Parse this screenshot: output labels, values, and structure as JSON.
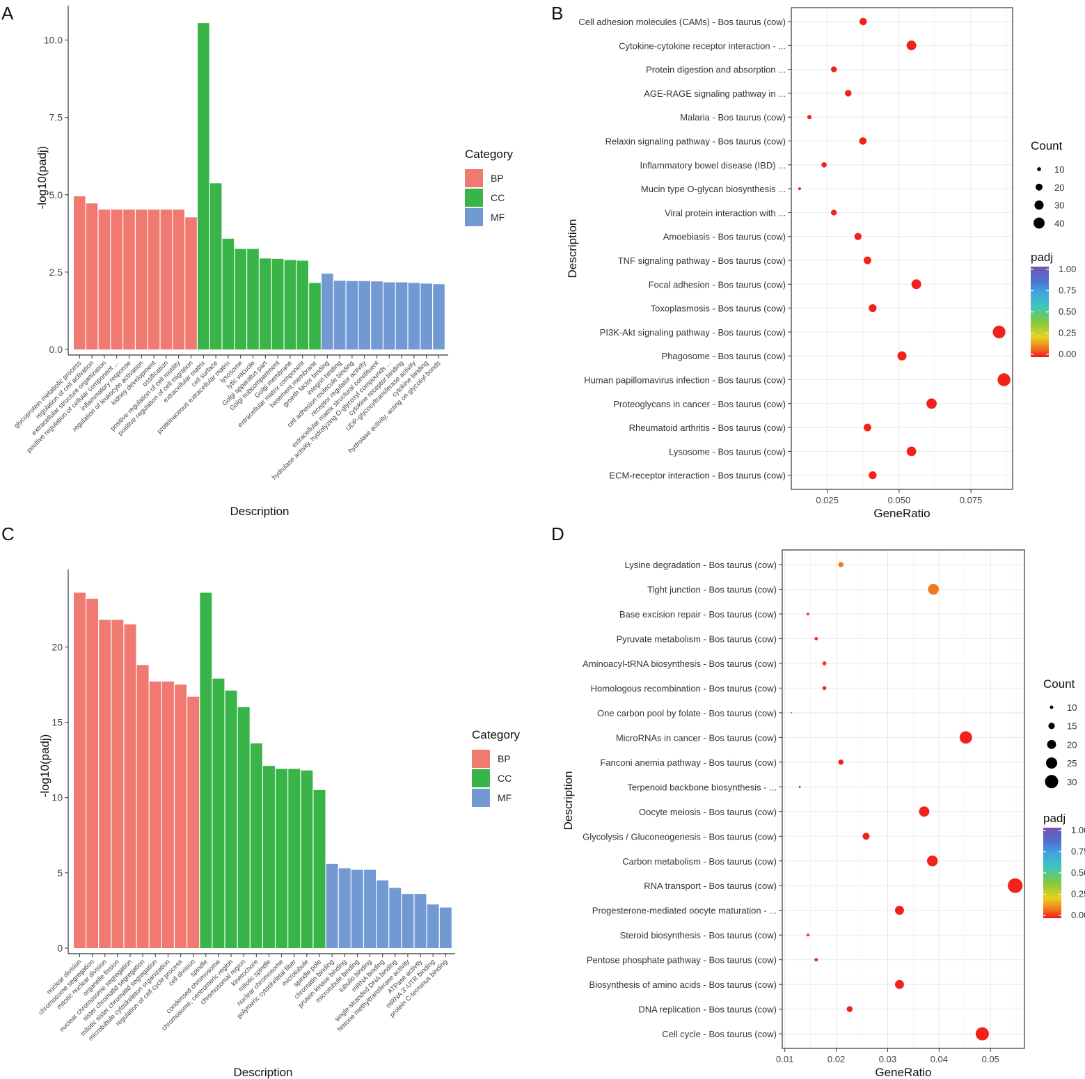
{
  "panel_labels": [
    "A",
    "B",
    "C",
    "D"
  ],
  "colors": {
    "BP": "#F07A72",
    "CC": "#38B449",
    "MF": "#7299D2",
    "grid": "#E8E8E8",
    "axis": "#333333"
  },
  "chart_data": [
    {
      "panel": "A",
      "type": "bar",
      "title": "",
      "xlabel": "Description",
      "ylabel": "-log10(padj)",
      "ylim": [
        0,
        10.8
      ],
      "yticks": [
        0.0,
        2.5,
        5.0,
        7.5,
        10.0
      ],
      "ytick_labels": [
        "0.0",
        "2.5",
        "5.0",
        "7.5",
        "10.0"
      ],
      "legend_title": "Category",
      "legend": [
        "BP",
        "CC",
        "MF"
      ],
      "categories": [
        "glycoprotein metabolic process",
        "regulation of cell activation",
        "extracellular structure organization",
        "positive regulation of cellular component ...",
        "inflammatory response",
        "regulation of leukocyte activation",
        "kidney development",
        "ossification",
        "positive regulation of cell motility",
        "positive regulation of cell migration",
        "extracellular matrix",
        "cell surface",
        "proteinaceous extracellular matrix",
        "lysosome",
        "lytic vacuole",
        "Golgi apparatus part",
        "Golgi subcompartment",
        "Golgi membrane",
        "extracellular matrix component",
        "basement membrane",
        "growth factor binding",
        "integrin binding",
        "cell adhesion molecule binding",
        "receptor regulator activity",
        "extracellular matrix structural constituent",
        "hydrolase activity, hydrolyzing O-glycosyl compounds ...",
        "cytokine receptor binding",
        "UDP-glycosyltransferase activity",
        "cytokine binding",
        "hydrolase activity, acting on glycosyl bonds"
      ],
      "groups": [
        "BP",
        "BP",
        "BP",
        "BP",
        "BP",
        "BP",
        "BP",
        "BP",
        "BP",
        "BP",
        "CC",
        "CC",
        "CC",
        "CC",
        "CC",
        "CC",
        "CC",
        "CC",
        "CC",
        "CC",
        "MF",
        "MF",
        "MF",
        "MF",
        "MF",
        "MF",
        "MF",
        "MF",
        "MF",
        "MF"
      ],
      "values": [
        4.95,
        4.72,
        4.52,
        4.52,
        4.52,
        4.52,
        4.52,
        4.52,
        4.52,
        4.27,
        10.55,
        5.37,
        3.58,
        3.25,
        3.25,
        2.94,
        2.93,
        2.89,
        2.87,
        2.15,
        2.45,
        2.22,
        2.21,
        2.21,
        2.2,
        2.17,
        2.17,
        2.15,
        2.13,
        2.11
      ]
    },
    {
      "panel": "B",
      "type": "scatter",
      "title": "",
      "xlabel": "GeneRatio",
      "ylabel": "Description",
      "xlim": [
        0.0125,
        0.0895
      ],
      "xticks": [
        0.025,
        0.05,
        0.075
      ],
      "xtick_labels": [
        "0.025",
        "0.050",
        "0.075"
      ],
      "size_legend_title": "Count",
      "size_legend_values": [
        10,
        20,
        30,
        40
      ],
      "color_legend_title": "padj",
      "color_legend_ticks": [
        "1.00",
        "0.75",
        "0.50",
        "0.25",
        "0.00"
      ],
      "points": [
        {
          "label": "Cell adhesion molecules (CAMs) - Bos taurus (cow)",
          "x": 0.0375,
          "count": 22,
          "padj": 0.01
        },
        {
          "label": "Cytokine-cytokine receptor interaction - ...",
          "x": 0.0543,
          "count": 33,
          "padj": 0.01
        },
        {
          "label": "Protein digestion and absorption ...",
          "x": 0.0273,
          "count": 16,
          "padj": 0.01
        },
        {
          "label": "AGE-RAGE signaling pathway in ...",
          "x": 0.0323,
          "count": 19,
          "padj": 0.01
        },
        {
          "label": "Malaria - Bos taurus (cow)",
          "x": 0.0188,
          "count": 11,
          "padj": 0.01
        },
        {
          "label": "Relaxin signaling pathway - Bos taurus (cow)",
          "x": 0.0374,
          "count": 22,
          "padj": 0.01
        },
        {
          "label": "Inflammatory bowel disease (IBD) ...",
          "x": 0.0239,
          "count": 14,
          "padj": 0.01
        },
        {
          "label": "Mucin type O-glycan biosynthesis ...",
          "x": 0.0154,
          "count": 7,
          "padj": 0.01
        },
        {
          "label": "Viral protein interaction with ...",
          "x": 0.0273,
          "count": 16,
          "padj": 0.01
        },
        {
          "label": "Amoebiasis - Bos taurus (cow)",
          "x": 0.0357,
          "count": 21,
          "padj": 0.01
        },
        {
          "label": "TNF signaling pathway - Bos taurus (cow)",
          "x": 0.039,
          "count": 23,
          "padj": 0.01
        },
        {
          "label": "Focal adhesion - Bos taurus (cow)",
          "x": 0.056,
          "count": 33,
          "padj": 0.01
        },
        {
          "label": "Toxoplasmosis - Bos taurus (cow)",
          "x": 0.0408,
          "count": 24,
          "padj": 0.01
        },
        {
          "label": "PI3K-Akt signaling pathway - Bos taurus (cow)",
          "x": 0.0848,
          "count": 50,
          "padj": 0.01
        },
        {
          "label": "Phagosome - Bos taurus (cow)",
          "x": 0.051,
          "count": 30,
          "padj": 0.01
        },
        {
          "label": "Human papillomavirus infection - Bos taurus (cow)",
          "x": 0.0865,
          "count": 51,
          "padj": 0.01
        },
        {
          "label": "Proteoglycans in cancer - Bos taurus (cow)",
          "x": 0.0613,
          "count": 36,
          "padj": 0.01
        },
        {
          "label": "Rheumatoid arthritis - Bos taurus (cow)",
          "x": 0.039,
          "count": 23,
          "padj": 0.01
        },
        {
          "label": "Lysosome - Bos taurus (cow)",
          "x": 0.0543,
          "count": 32,
          "padj": 0.01
        },
        {
          "label": "ECM-receptor interaction - Bos taurus (cow)",
          "x": 0.0408,
          "count": 24,
          "padj": 0.01
        }
      ]
    },
    {
      "panel": "C",
      "type": "bar",
      "title": "",
      "xlabel": "Description",
      "ylabel": "-log10(padj)",
      "ylim": [
        0,
        24.5
      ],
      "yticks": [
        0,
        5,
        10,
        15,
        20
      ],
      "ytick_labels": [
        "0",
        "5",
        "10",
        "15",
        "20"
      ],
      "legend_title": "Category",
      "legend": [
        "BP",
        "CC",
        "MF"
      ],
      "categories": [
        "nuclear division",
        "chromosome segregation",
        "mitotic nuclear division",
        "organelle fission",
        "nuclear chromosome segregation",
        "sister chromatid segregation",
        "mitotic sister chromatid segregation",
        "microtubule cytoskeleton organization",
        "regulation of cell cycle process",
        "cell division",
        "spindle",
        "condensed chromosome",
        "chromosome, centromeric region",
        "chromosomal region",
        "kinetochore",
        "mitotic spindle",
        "nuclear chromosome",
        "polymeric cytoskeletal fiber",
        "microtubule",
        "spindle pole",
        "chromatin binding",
        "protein kinase binding",
        "microtubule binding",
        "tubulin binding",
        "mRNA binding",
        "single-stranded DNA binding",
        "histone methyltransferase activity",
        "ATPase activity",
        "mRNA 3'-UTR binding",
        "protein C-terminus binding"
      ],
      "groups": [
        "BP",
        "BP",
        "BP",
        "BP",
        "BP",
        "BP",
        "BP",
        "BP",
        "BP",
        "BP",
        "CC",
        "CC",
        "CC",
        "CC",
        "CC",
        "CC",
        "CC",
        "CC",
        "CC",
        "CC",
        "MF",
        "MF",
        "MF",
        "MF",
        "MF",
        "MF",
        "MF",
        "MF",
        "MF",
        "MF"
      ],
      "values": [
        23.6,
        23.2,
        21.8,
        21.8,
        21.5,
        18.8,
        17.7,
        17.7,
        17.5,
        16.7,
        23.6,
        17.9,
        17.1,
        16.0,
        13.6,
        12.1,
        11.9,
        11.9,
        11.8,
        10.5,
        5.6,
        5.3,
        5.2,
        5.2,
        4.5,
        4.0,
        3.6,
        3.6,
        2.9,
        2.7
      ]
    },
    {
      "panel": "D",
      "type": "scatter",
      "title": "",
      "xlabel": "GeneRatio",
      "ylabel": "Description",
      "xlim": [
        0.0095,
        0.0566
      ],
      "xticks": [
        0.01,
        0.02,
        0.03,
        0.04,
        0.05
      ],
      "xtick_labels": [
        "0.01",
        "0.02",
        "0.03",
        "0.04",
        "0.05"
      ],
      "size_legend_title": "Count",
      "size_legend_values": [
        10,
        15,
        20,
        25,
        30
      ],
      "color_legend_title": "padj",
      "color_legend_ticks": [
        "1.00",
        "0.75",
        "0.50",
        "0.25",
        "0.00"
      ],
      "points": [
        {
          "label": "Lysine degradation - Bos taurus (cow)",
          "x": 0.0209,
          "count": 13,
          "padj": 0.1
        },
        {
          "label": "Tight junction - Bos taurus (cow)",
          "x": 0.0389,
          "count": 24,
          "padj": 0.1
        },
        {
          "label": "Base excision repair - Bos taurus (cow)",
          "x": 0.0145,
          "count": 9,
          "padj": 0.03
        },
        {
          "label": "Pyruvate metabolism - Bos taurus (cow)",
          "x": 0.0161,
          "count": 10,
          "padj": 0.03
        },
        {
          "label": "Aminoacyl-tRNA biosynthesis - Bos taurus (cow)",
          "x": 0.0177,
          "count": 11,
          "padj": 0.03
        },
        {
          "label": "Homologous recombination - Bos taurus (cow)",
          "x": 0.0177,
          "count": 11,
          "padj": 0.03
        },
        {
          "label": "One carbon pool by folate - Bos taurus (cow)",
          "x": 0.0113,
          "count": 7,
          "padj": 0.02
        },
        {
          "label": "MicroRNAs in cancer - Bos taurus (cow)",
          "x": 0.0452,
          "count": 28,
          "padj": 0.01
        },
        {
          "label": "Fanconi anemia pathway - Bos taurus (cow)",
          "x": 0.0209,
          "count": 13,
          "padj": 0.01
        },
        {
          "label": "Terpenoid backbone biosynthesis - ...",
          "x": 0.0129,
          "count": 8,
          "padj": 0.01
        },
        {
          "label": "Oocyte meiosis - Bos taurus (cow)",
          "x": 0.0371,
          "count": 23,
          "padj": 0.01
        },
        {
          "label": "Glycolysis / Gluconeogenesis - Bos taurus (cow)",
          "x": 0.0258,
          "count": 16,
          "padj": 0.01
        },
        {
          "label": "Carbon metabolism - Bos taurus (cow)",
          "x": 0.0387,
          "count": 24,
          "padj": 0.01
        },
        {
          "label": "RNA transport - Bos taurus (cow)",
          "x": 0.0548,
          "count": 34,
          "padj": 0.01
        },
        {
          "label": "Progesterone-mediated oocyte maturation - ...",
          "x": 0.0323,
          "count": 20,
          "padj": 0.01
        },
        {
          "label": "Steroid biosynthesis - Bos taurus (cow)",
          "x": 0.0145,
          "count": 9,
          "padj": 0.01
        },
        {
          "label": "Pentose phosphate pathway - Bos taurus (cow)",
          "x": 0.0161,
          "count": 10,
          "padj": 0.01
        },
        {
          "label": "Biosynthesis of amino acids - Bos taurus (cow)",
          "x": 0.0323,
          "count": 20,
          "padj": 0.01
        },
        {
          "label": "DNA replication - Bos taurus (cow)",
          "x": 0.0226,
          "count": 14,
          "padj": 0.01
        },
        {
          "label": "Cell cycle - Bos taurus (cow)",
          "x": 0.0484,
          "count": 30,
          "padj": 0.01
        }
      ]
    }
  ]
}
